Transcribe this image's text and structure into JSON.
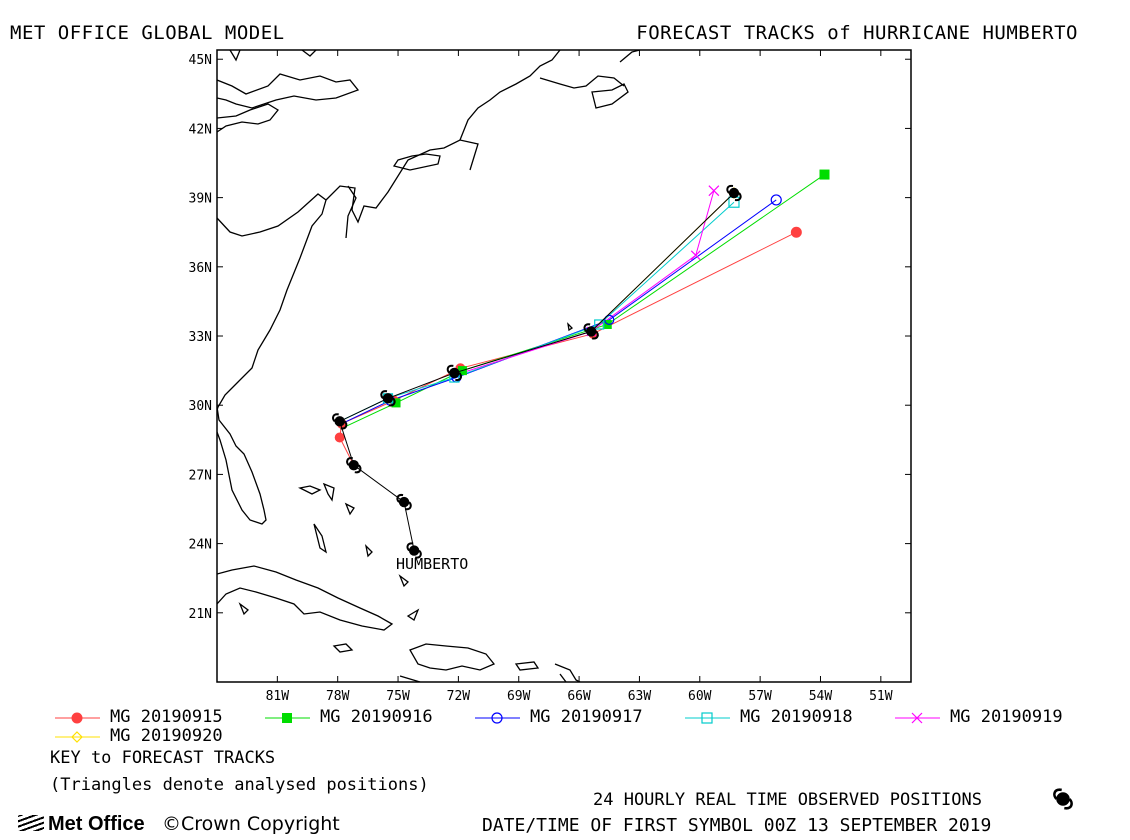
{
  "header": {
    "title_left": "MET OFFICE GLOBAL MODEL",
    "title_right": "FORECAST TRACKS of HURRICANE HUMBERTO"
  },
  "map": {
    "lon_range": [
      -84,
      -49.5
    ],
    "lat_range": [
      18,
      45.4
    ],
    "lat_ticks": [
      {
        "v": 45,
        "l": "45N"
      },
      {
        "v": 42,
        "l": "42N"
      },
      {
        "v": 39,
        "l": "39N"
      },
      {
        "v": 36,
        "l": "36N"
      },
      {
        "v": 33,
        "l": "33N"
      },
      {
        "v": 30,
        "l": "30N"
      },
      {
        "v": 27,
        "l": "27N"
      },
      {
        "v": 24,
        "l": "24N"
      },
      {
        "v": 21,
        "l": "21N"
      }
    ],
    "lon_ticks": [
      {
        "v": -81,
        "l": "81W"
      },
      {
        "v": -78,
        "l": "78W"
      },
      {
        "v": -75,
        "l": "75W"
      },
      {
        "v": -72,
        "l": "72W"
      },
      {
        "v": -69,
        "l": "69W"
      },
      {
        "v": -66,
        "l": "66W"
      },
      {
        "v": -63,
        "l": "63W"
      },
      {
        "v": -60,
        "l": "60W"
      },
      {
        "v": -57,
        "l": "57W"
      },
      {
        "v": -54,
        "l": "54W"
      },
      {
        "v": -51,
        "l": "51W"
      }
    ],
    "storm_label": "HUMBERTO",
    "storm_label_pos": [
      -75.1,
      22.9
    ],
    "observed": [
      [
        -74.2,
        23.7
      ],
      [
        -74.7,
        25.8
      ],
      [
        -77.2,
        27.4
      ],
      [
        -77.9,
        29.3
      ],
      [
        -75.5,
        30.3
      ],
      [
        -72.2,
        31.4
      ],
      [
        -65.4,
        33.2
      ],
      [
        -58.3,
        39.2
      ]
    ],
    "observed_track_color": "#000000",
    "tracks": [
      {
        "name": "MG 20190915",
        "color": "#ff4040",
        "marker": "filled-circle",
        "points": [
          [
            -77.2,
            27.4
          ],
          [
            -77.9,
            28.6
          ],
          [
            -77.8,
            29.2
          ],
          [
            -75.2,
            30.2
          ],
          [
            -71.9,
            31.6
          ],
          [
            -65.3,
            33.1
          ],
          [
            -55.2,
            37.5
          ]
        ]
      },
      {
        "name": "MG 20190916",
        "color": "#00dd00",
        "marker": "filled-square",
        "points": [
          [
            -77.8,
            29.0
          ],
          [
            -75.1,
            30.1
          ],
          [
            -71.8,
            31.5
          ],
          [
            -64.6,
            33.5
          ],
          [
            -53.8,
            40.0
          ]
        ]
      },
      {
        "name": "MG 20190917",
        "color": "#0000ff",
        "marker": "open-circle",
        "points": [
          [
            -77.8,
            29.2
          ],
          [
            -75.4,
            30.2
          ],
          [
            -72.1,
            31.2
          ],
          [
            -64.5,
            33.7
          ],
          [
            -56.2,
            38.9
          ]
        ]
      },
      {
        "name": "MG 20190918",
        "color": "#00cccc",
        "marker": "open-square",
        "points": [
          [
            -77.9,
            29.3
          ],
          [
            -75.5,
            30.3
          ],
          [
            -72.2,
            31.2
          ],
          [
            -65.0,
            33.5
          ],
          [
            -58.3,
            38.8
          ]
        ]
      },
      {
        "name": "MG 20190919",
        "color": "#ff00ff",
        "marker": "x",
        "points": [
          [
            -72.2,
            31.3
          ],
          [
            -65.4,
            33.2
          ],
          [
            -60.2,
            36.5
          ],
          [
            -59.3,
            39.3
          ]
        ]
      },
      {
        "name": "MG 20190920",
        "color": "#ffe000",
        "marker": "diamond",
        "points": [
          [
            -65.4,
            33.2
          ],
          [
            -58.3,
            39.2
          ]
        ]
      }
    ]
  },
  "legend": {
    "key_title": "KEY to FORECAST TRACKS",
    "key_note": "(Triangles denote analysed positions)"
  },
  "footer": {
    "observed_positions": "24 HOURLY REAL TIME OBSERVED POSITIONS",
    "first_symbol": "DATE/TIME OF FIRST SYMBOL 00Z 13 SEPTEMBER 2019",
    "logo": "Met Office",
    "copyright": "©Crown Copyright",
    "logo_icon": "met-office-logo-icon",
    "hurricane_icon": "hurricane-symbol-icon"
  }
}
